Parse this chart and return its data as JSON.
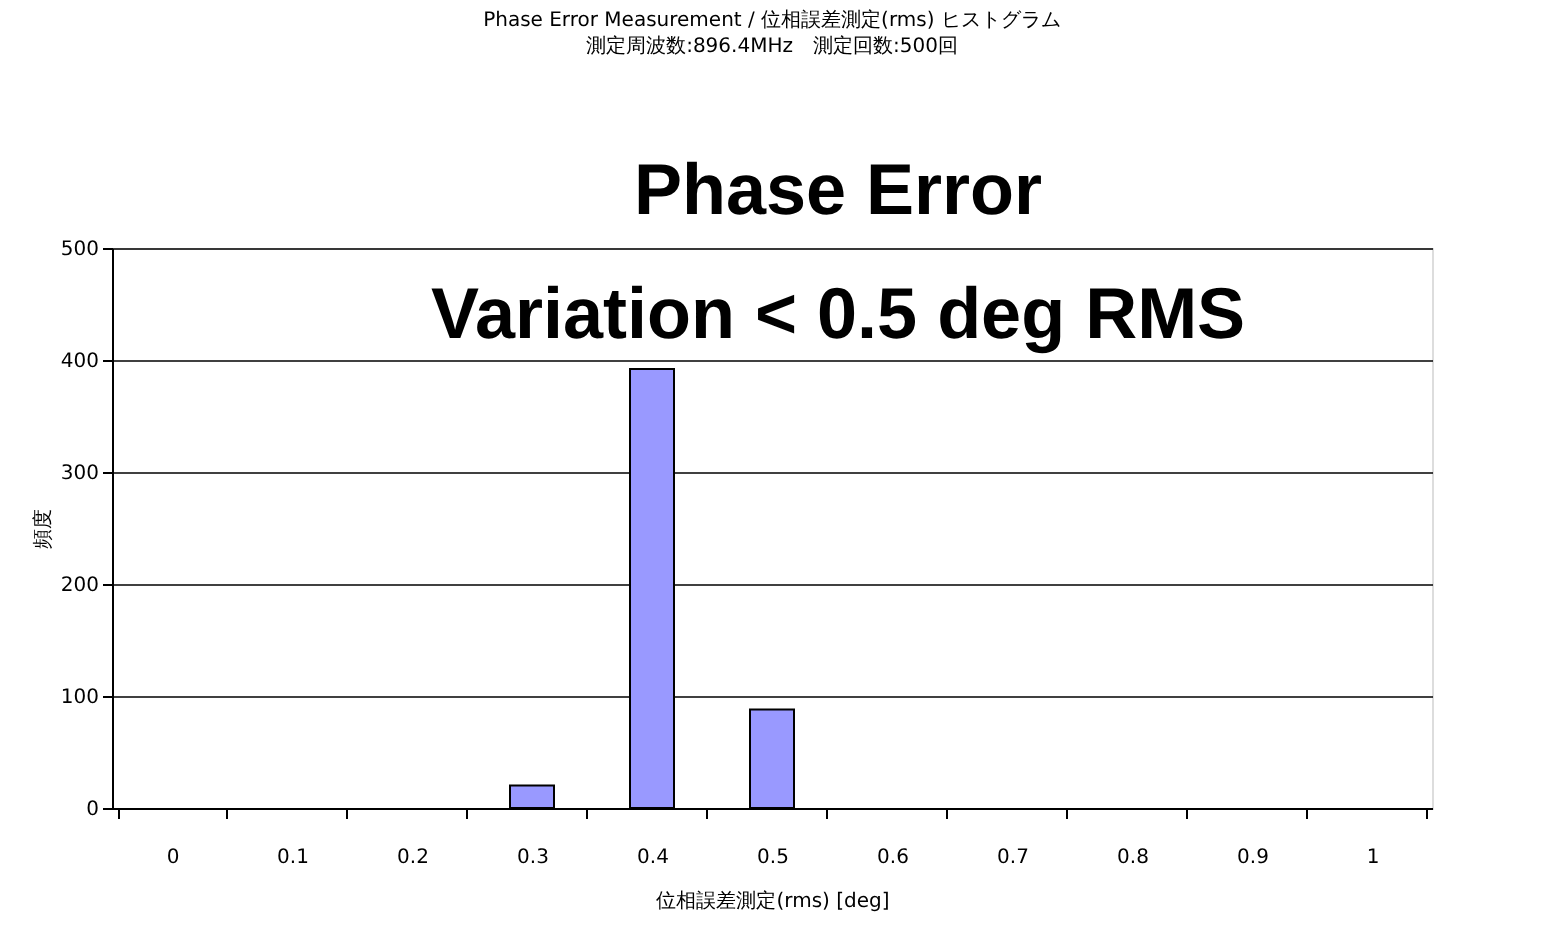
{
  "chart_data": {
    "type": "bar",
    "title": "Phase Error Measurement / 位相誤差測定(rms) ヒストグラム",
    "subtitle": "測定周波数:896.4MHz　測定回数:500回",
    "xlabel": "位相誤差測定(rms) [deg]",
    "ylabel": "頻度",
    "categories": [
      "0",
      "0.1",
      "0.2",
      "0.3",
      "0.4",
      "0.5",
      "0.6",
      "0.7",
      "0.8",
      "0.9",
      "1"
    ],
    "values": [
      0,
      0,
      0,
      20,
      392,
      88,
      0,
      0,
      0,
      0,
      0
    ],
    "color": "#9999ff",
    "ylim": [
      0,
      500
    ],
    "yticks": [
      0,
      100,
      200,
      300,
      400,
      500
    ],
    "grid": "y",
    "annotations": [
      "Phase Error",
      "Variation <  0.5 deg RMS"
    ]
  }
}
